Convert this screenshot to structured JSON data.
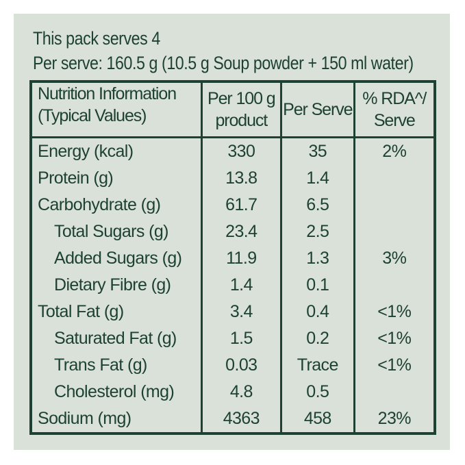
{
  "colors": {
    "page_background": "#ffffff",
    "panel_background": "#d9e1d8",
    "text_and_borders": "#1d4132"
  },
  "intro": {
    "line1": "This pack serves 4",
    "line2": "Per serve: 160.5 g (10.5 g Soup powder + 150 ml water)"
  },
  "table": {
    "headers": {
      "col1_line1": "Nutrition Information",
      "col1_line2": "(Typical Values)",
      "col2_line1": "Per 100 g",
      "col2_line2": "product",
      "col3": "Per Serve",
      "col4_line1": "% RDA^/",
      "col4_line2": "Serve"
    },
    "rows": [
      {
        "label": "Energy (kcal)",
        "indent": false,
        "per_100g": "330",
        "per_serve": "35",
        "rda": "2%"
      },
      {
        "label": "Protein (g)",
        "indent": false,
        "per_100g": "13.8",
        "per_serve": "1.4",
        "rda": ""
      },
      {
        "label": "Carbohydrate (g)",
        "indent": false,
        "per_100g": "61.7",
        "per_serve": "6.5",
        "rda": ""
      },
      {
        "label": "Total Sugars (g)",
        "indent": true,
        "per_100g": "23.4",
        "per_serve": "2.5",
        "rda": ""
      },
      {
        "label": "Added Sugars (g)",
        "indent": true,
        "per_100g": "11.9",
        "per_serve": "1.3",
        "rda": "3%"
      },
      {
        "label": "Dietary Fibre (g)",
        "indent": true,
        "per_100g": "1.4",
        "per_serve": "0.1",
        "rda": ""
      },
      {
        "label": "Total Fat (g)",
        "indent": false,
        "per_100g": "3.4",
        "per_serve": "0.4",
        "rda": "<1%"
      },
      {
        "label": "Saturated Fat (g)",
        "indent": true,
        "per_100g": "1.5",
        "per_serve": "0.2",
        "rda": "<1%"
      },
      {
        "label": "Trans Fat (g)",
        "indent": true,
        "per_100g": "0.03",
        "per_serve": "Trace",
        "rda": "<1%"
      },
      {
        "label": "Cholesterol (mg)",
        "indent": true,
        "per_100g": "4.8",
        "per_serve": "0.5",
        "rda": ""
      },
      {
        "label": "Sodium (mg)",
        "indent": false,
        "per_100g": "4363",
        "per_serve": "458",
        "rda": "23%"
      }
    ]
  }
}
